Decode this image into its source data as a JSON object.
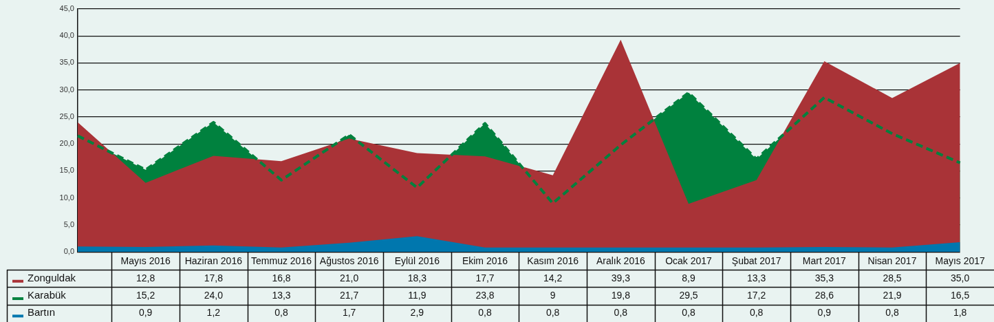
{
  "chart_data": {
    "type": "area",
    "categories": [
      null,
      "Mayıs 2016",
      "Haziran 2016",
      "Temmuz 2016",
      "Ağustos 2016",
      "Eylül 2016",
      "Ekim 2016",
      "Kasım 2016",
      "Aralık 2016",
      "Ocak 2017",
      "Şubat 2017",
      "Mart 2017",
      "Nisan 2017",
      "Mayıs 2017"
    ],
    "series": [
      {
        "name": "Zonguldak",
        "color": "#a93337",
        "values": [
          24.0,
          12.8,
          17.8,
          16.8,
          21.0,
          18.3,
          17.7,
          14.2,
          39.3,
          8.9,
          13.3,
          35.3,
          28.5,
          35.0
        ],
        "value_labels": [
          null,
          "12,8",
          "17,8",
          "16,8",
          "21,0",
          "18,3",
          "17,7",
          "14,2",
          "39,3",
          "8,9",
          "13,3",
          "35,3",
          "28,5",
          "35,0"
        ]
      },
      {
        "name": "Karabük",
        "color": "#00813e",
        "line_style": "dashed",
        "values": [
          21.5,
          15.2,
          24.0,
          13.3,
          21.7,
          11.9,
          23.8,
          9,
          19.8,
          29.5,
          17.2,
          28.6,
          21.9,
          16.5
        ],
        "value_labels": [
          null,
          "15,2",
          "24,0",
          "13,3",
          "21,7",
          "11,9",
          "23,8",
          "9",
          "19,8",
          "29,5",
          "17,2",
          "28,6",
          "21,9",
          "16,5"
        ]
      },
      {
        "name": "Bartın",
        "color": "#0077ae",
        "values": [
          1.0,
          0.9,
          1.2,
          0.8,
          1.7,
          2.9,
          0.8,
          0.8,
          0.8,
          0.8,
          0.8,
          0.9,
          0.8,
          1.8
        ],
        "value_labels": [
          null,
          "0,9",
          "1,2",
          "0,8",
          "1,7",
          "2,9",
          "0,8",
          "0,8",
          "0,8",
          "0,8",
          "0,8",
          "0,9",
          "0,8",
          "1,8"
        ]
      }
    ],
    "ylim": [
      0,
      45
    ],
    "yticks": [
      {
        "value": 0,
        "label": "0,0"
      },
      {
        "value": 5,
        "label": "5,0"
      },
      {
        "value": 10,
        "label": "10,0"
      },
      {
        "value": 15,
        "label": "15,0"
      },
      {
        "value": 20,
        "label": "20,0"
      },
      {
        "value": 25,
        "label": "25,0"
      },
      {
        "value": 30,
        "label": "30,0"
      },
      {
        "value": 35,
        "label": "35,0"
      },
      {
        "value": 40,
        "label": "40,0"
      },
      {
        "value": 45,
        "label": "45,0"
      }
    ],
    "grid": "y",
    "legend": "bottom",
    "marker": "none"
  }
}
